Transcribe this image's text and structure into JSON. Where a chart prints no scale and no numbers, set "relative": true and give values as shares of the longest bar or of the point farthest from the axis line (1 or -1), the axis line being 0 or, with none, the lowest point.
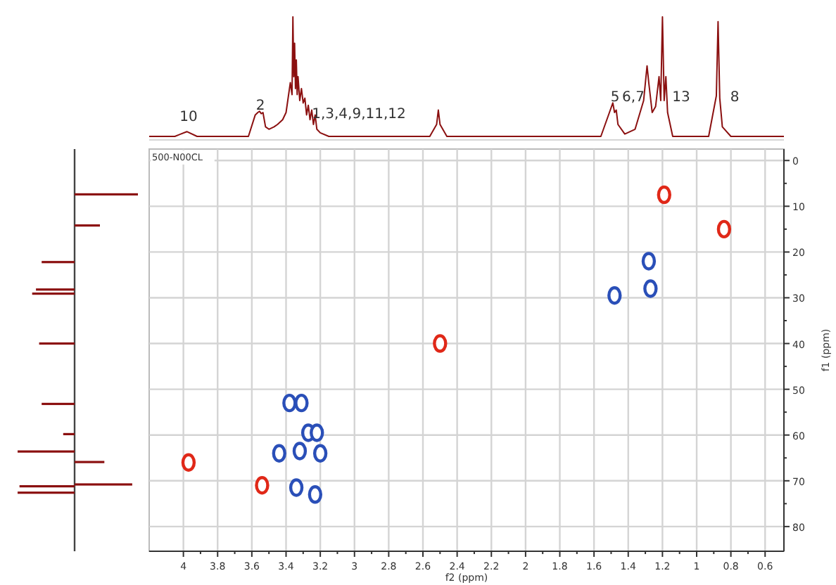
{
  "chart_data": [
    {
      "type": "line",
      "relative": true,
      "tick_labels": false,
      "xlim": [
        4.2,
        0.49
      ],
      "series": [
        {
          "color": "#8b1010",
          "x": [
            4.2,
            4.05,
            3.98,
            3.92,
            3.62,
            3.58,
            3.565,
            3.555,
            3.545,
            3.535,
            3.52,
            3.5,
            3.47,
            3.45,
            3.42,
            3.4,
            3.39,
            3.375,
            3.365,
            3.36,
            3.355,
            3.35,
            3.345,
            3.34,
            3.335,
            3.33,
            3.32,
            3.31,
            3.3,
            3.29,
            3.28,
            3.27,
            3.26,
            3.25,
            3.24,
            3.23,
            3.22,
            3.2,
            3.15,
            2.56,
            2.52,
            2.51,
            2.5,
            2.46,
            1.56,
            1.51,
            1.49,
            1.48,
            1.47,
            1.46,
            1.42,
            1.36,
            1.31,
            1.29,
            1.28,
            1.26,
            1.24,
            1.22,
            1.21,
            1.2,
            1.19,
            1.18,
            1.17,
            1.14,
            0.93,
            0.885,
            0.875,
            0.865,
            0.85,
            0.8,
            0.49
          ],
          "values": [
            0,
            0,
            0.04,
            0,
            0,
            0.18,
            0.2,
            0.21,
            0.19,
            0.2,
            0.08,
            0.06,
            0.08,
            0.1,
            0.14,
            0.2,
            0.3,
            0.45,
            0.35,
            1.0,
            0.5,
            0.78,
            0.4,
            0.64,
            0.35,
            0.5,
            0.3,
            0.4,
            0.28,
            0.32,
            0.18,
            0.26,
            0.14,
            0.22,
            0.1,
            0.18,
            0.06,
            0.03,
            0,
            0,
            0.1,
            0.22,
            0.1,
            0,
            0,
            0.2,
            0.28,
            0.2,
            0.22,
            0.1,
            0.02,
            0.06,
            0.3,
            0.59,
            0.45,
            0.2,
            0.25,
            0.5,
            0.3,
            1.0,
            0.3,
            0.5,
            0.2,
            0,
            0,
            0.34,
            0.96,
            0.32,
            0.08,
            0,
            0
          ]
        }
      ],
      "annotations": [
        "10",
        "2",
        "1,3,4,9,11,12",
        "5",
        "6,7",
        "13",
        "8"
      ]
    },
    {
      "type": "scatter",
      "xlim": [
        4.2,
        0.49
      ],
      "ylim": [
        85.4,
        -2.5
      ],
      "xticks": [
        4.0,
        3.8,
        3.6,
        3.4,
        3.2,
        3.0,
        2.8,
        2.6,
        2.4,
        2.2,
        2.0,
        1.8,
        1.6,
        1.4,
        1.2,
        1.0,
        0.8,
        0.6
      ],
      "yticks": [
        0,
        10,
        20,
        30,
        40,
        50,
        60,
        70,
        80
      ],
      "xlabel": "f2 (ppm)",
      "ylabel": "f1 (ppm)",
      "grid": true,
      "marker": "circle",
      "annotations": [
        "500-N00CL"
      ],
      "series": [
        {
          "color": "#e02818",
          "x": [
            1.19,
            0.84,
            2.5,
            3.97,
            3.54
          ],
          "values": [
            7.5,
            15,
            40,
            66,
            71
          ]
        },
        {
          "color": "#2a4fb8",
          "x": [
            1.28,
            1.27,
            1.48,
            3.38,
            3.31,
            3.27,
            3.22,
            3.44,
            3.32,
            3.2,
            3.34,
            3.23
          ],
          "values": [
            22,
            28,
            29.5,
            53,
            53,
            59.5,
            59.5,
            64,
            63.5,
            64,
            71.5,
            73
          ]
        }
      ]
    },
    {
      "type": "bar",
      "orientation": "horizontal",
      "relative": true,
      "ylim": [
        85.4,
        -2.5
      ],
      "tick_labels": false,
      "x": [
        7.4,
        14.2,
        22.2,
        28.2,
        29.1,
        40,
        53.2,
        59.8,
        63.6,
        65.9,
        70.8,
        71.2,
        72.6
      ],
      "values": [
        1,
        0.4,
        -0.52,
        -0.61,
        -0.67,
        -0.56,
        -0.52,
        -0.18,
        -0.9,
        0.47,
        0.91,
        -0.87,
        -0.9
      ],
      "color": "#8b1010"
    }
  ]
}
